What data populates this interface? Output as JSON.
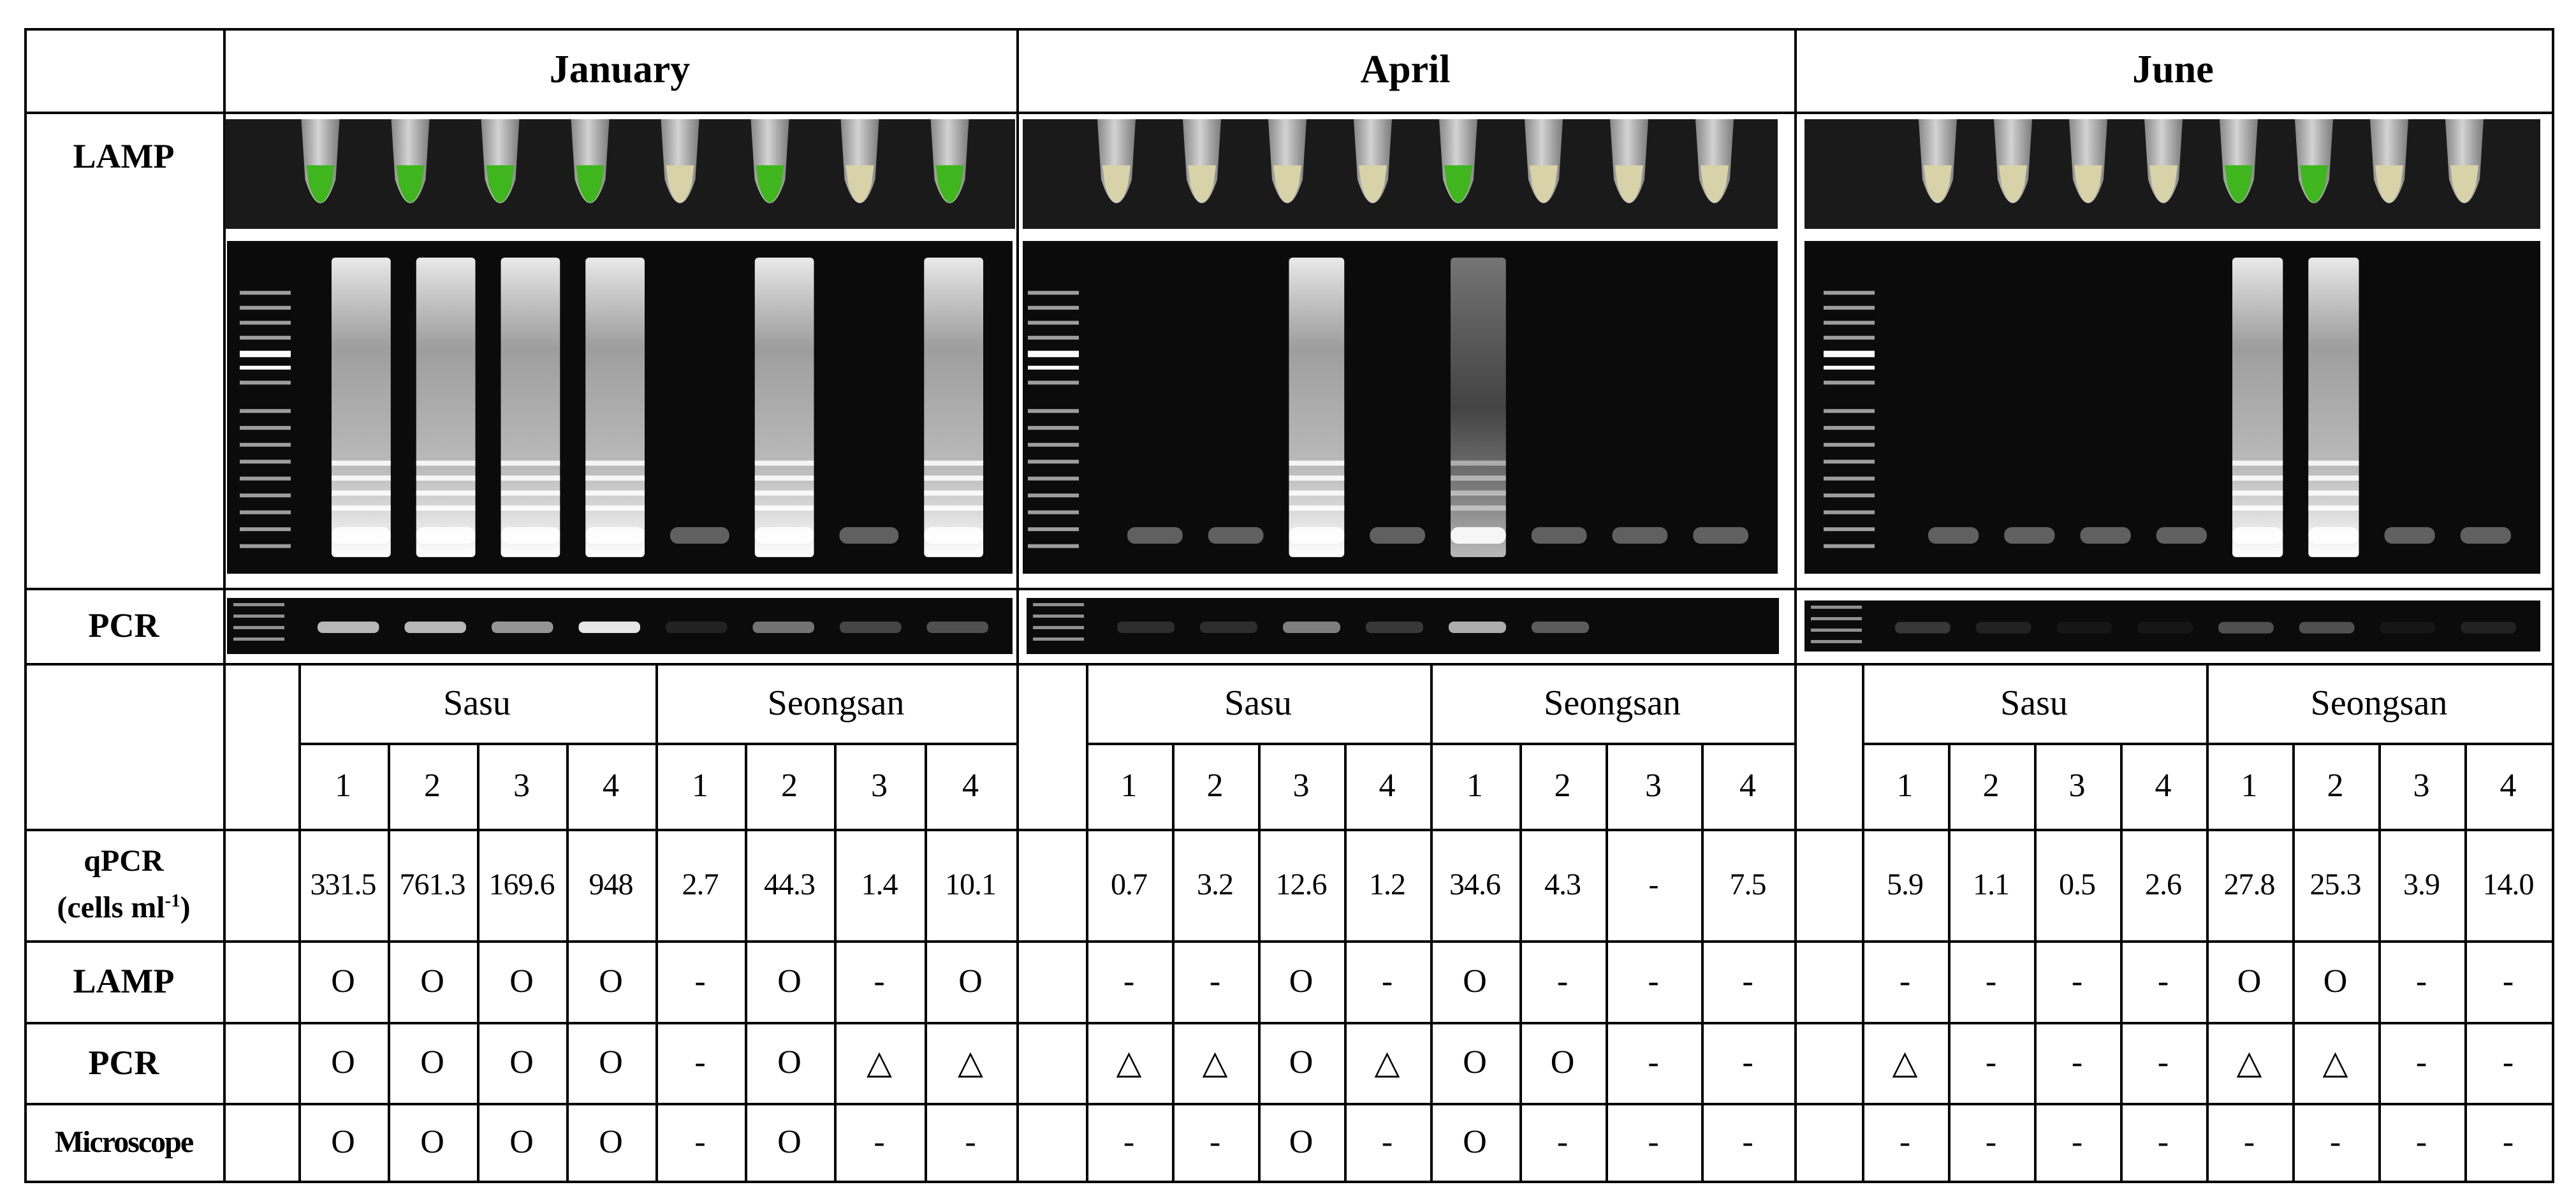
{
  "months": [
    "January",
    "April",
    "June"
  ],
  "row_labels": {
    "lamp": "LAMP",
    "pcr": "PCR",
    "qpcr_line1": "qPCR",
    "qpcr_line2": "(cells ml",
    "qpcr_sup": "-1",
    "qpcr_close": ")",
    "lamp2": "LAMP",
    "pcr2": "PCR",
    "microscope": "Microscope"
  },
  "locations": [
    "Sasu",
    "Seongsan"
  ],
  "sample_numbers": [
    "1",
    "2",
    "3",
    "4"
  ],
  "blocks": [
    {
      "month": "January",
      "qpcr": [
        "331.5",
        "761.3",
        "169.6",
        "948",
        "2.7",
        "44.3",
        "1.4",
        "10.1"
      ],
      "lamp": [
        "O",
        "O",
        "O",
        "O",
        "-",
        "O",
        "-",
        "O"
      ],
      "pcr": [
        "O",
        "O",
        "O",
        "O",
        "-",
        "O",
        "△",
        "△"
      ],
      "microscope": [
        "O",
        "O",
        "O",
        "O",
        "-",
        "O",
        "-",
        "-"
      ]
    },
    {
      "month": "April",
      "qpcr": [
        "0.7",
        "3.2",
        "12.6",
        "1.2",
        "34.6",
        "4.3",
        "-",
        "7.5"
      ],
      "lamp": [
        "-",
        "-",
        "O",
        "-",
        "O",
        "-",
        "-",
        "-"
      ],
      "pcr": [
        "△",
        "△",
        "O",
        "△",
        "O",
        "O",
        "-",
        "-"
      ],
      "microscope": [
        "-",
        "-",
        "O",
        "-",
        "O",
        "-",
        "-",
        "-"
      ]
    },
    {
      "month": "June",
      "qpcr": [
        "5.9",
        "1.1",
        "0.5",
        "2.6",
        "27.8",
        "25.3",
        "3.9",
        "14.0"
      ],
      "lamp": [
        "-",
        "-",
        "-",
        "-",
        "O",
        "O",
        "-",
        "-"
      ],
      "pcr": [
        "△",
        "-",
        "-",
        "-",
        "△",
        "△",
        "-",
        "-"
      ],
      "microscope": [
        "-",
        "-",
        "-",
        "-",
        "-",
        "-",
        "-",
        "-"
      ]
    }
  ],
  "images": {
    "tubes": [
      [
        "green",
        "green",
        "green",
        "green",
        "clear",
        "green",
        "clear",
        "green"
      ],
      [
        "clear",
        "clear",
        "clear",
        "clear",
        "green",
        "clear",
        "clear",
        "clear"
      ],
      [
        "clear",
        "clear",
        "clear",
        "clear",
        "green",
        "green",
        "clear",
        "clear"
      ]
    ],
    "lamp_gel_lanes": [
      [
        "strong",
        "strong",
        "strong",
        "strong",
        "faint",
        "strong",
        "faint",
        "strong"
      ],
      [
        "faint",
        "faint",
        "strong",
        "faint",
        "medium",
        "faint",
        "faint",
        "faint"
      ],
      [
        "faint",
        "faint",
        "faint",
        "faint",
        "strong",
        "strong",
        "faint",
        "faint"
      ]
    ],
    "pcr_bands": [
      [
        0.75,
        0.75,
        0.6,
        0.95,
        0.1,
        0.45,
        0.25,
        0.3
      ],
      [
        0.15,
        0.15,
        0.5,
        0.2,
        0.7,
        0.35,
        0.0,
        0.0
      ],
      [
        0.2,
        0.1,
        0.05,
        0.05,
        0.3,
        0.3,
        0.05,
        0.1
      ]
    ],
    "colors": {
      "tube_green": "#3fb51e",
      "tube_clear": "#d8d2a8",
      "gel_bg": "#0b0b0b",
      "band": "#f2f2f2"
    }
  }
}
